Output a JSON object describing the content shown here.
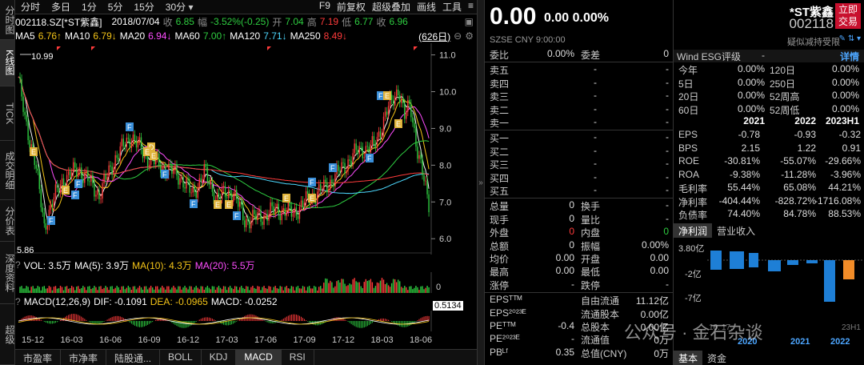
{
  "sidetabs": [
    "分时图",
    "K线图",
    "TICK",
    "成交明细",
    "分价表",
    "深度资料",
    "超级"
  ],
  "toolbar": {
    "periods": [
      "分时",
      "多日",
      "1分",
      "5分",
      "15分",
      "30分"
    ],
    "right": [
      "F9",
      "前复权",
      "超级叠加",
      "画线",
      "工具",
      "≡"
    ]
  },
  "info": {
    "code": "002118.SZ[*ST紫鑫]",
    "date": "2018/07/04",
    "收": "6.85",
    "幅": "-3.52%(-0.25)",
    "开": "7.04",
    "高": "7.19",
    "低": "6.77",
    "收2": "6.96"
  },
  "ma": {
    "MA5": "6.76↑",
    "MA10": "6.79↓",
    "MA20": "6.94↓",
    "MA60": "7.00↑",
    "MA120": "7.71↓",
    "MA250": "8.49↓",
    "count": "(626日)"
  },
  "chart": {
    "ymax": "10.99",
    "ymin": "5.86",
    "ticks": [
      "11.0",
      "10.0",
      "9.0",
      "8.0",
      "7.0",
      "6.0"
    ],
    "xlabels": [
      "15-12",
      "16-03",
      "16-06",
      "16-09",
      "16-12",
      "17-03",
      "17-06",
      "17-09",
      "17-12",
      "18-03",
      "18-06"
    ]
  },
  "vol": {
    "text": "VOL: 3.5万",
    "ma5": "MA(5): 3.9万",
    "ma10": "MA(10): 4.3万",
    "ma20": "MA(20): 5.5万",
    "tick": "0"
  },
  "macd": {
    "params": "MACD(12,26,9)",
    "dif": "DIF: -0.1091",
    "dea": "DEA: -0.0965",
    "macd": "MACD: -0.0252",
    "value": "0.5134"
  },
  "bottomtabs": [
    "市盈率",
    "市净率",
    "陆股通...",
    "BOLL",
    "KDJ",
    "MACD",
    "RSI"
  ],
  "quote": {
    "price": "0.00",
    "chg": "0.00",
    "pct": "0.00%",
    "exchange": "SZSE",
    "cny": "CNY",
    "time": "9:00:00",
    "top": [
      [
        "委比",
        "0.00%",
        "委差",
        "0"
      ]
    ],
    "asks": [
      [
        "卖五",
        "-",
        "-"
      ],
      [
        "卖四",
        "-",
        "-"
      ],
      [
        "卖三",
        "-",
        "-"
      ],
      [
        "卖二",
        "-",
        "-"
      ],
      [
        "卖一",
        "-",
        "-"
      ]
    ],
    "bids": [
      [
        "买一",
        "-",
        "-"
      ],
      [
        "买二",
        "-",
        "-"
      ],
      [
        "买三",
        "-",
        "-"
      ],
      [
        "买四",
        "-",
        "-"
      ],
      [
        "买五",
        "-",
        "-"
      ]
    ],
    "stats": [
      [
        "总量",
        "0",
        "换手",
        "-"
      ],
      [
        "现手",
        "0",
        "量比",
        "-"
      ],
      [
        "外盘",
        "0",
        "内盘",
        "0"
      ],
      [
        "总额",
        "0",
        "振幅",
        "0.00%"
      ],
      [
        "均价",
        "0.00",
        "开盘",
        "0.00"
      ],
      [
        "最高",
        "0.00",
        "最低",
        "0.00"
      ],
      [
        "涨停",
        "-",
        "跌停",
        "-"
      ]
    ],
    "bottom": [
      [
        "EPSᵀᵀᴹ",
        "",
        "自由流通",
        "11.12亿"
      ],
      [
        "EPS²⁰²³ᴱ",
        "",
        "流通股本",
        "0.00亿"
      ],
      [
        "PEᵀᵀᴹ",
        "-0.4",
        "总股本",
        "0.00亿"
      ],
      [
        "PE²⁰²³ᴱ",
        "-",
        "流通值",
        "0万"
      ],
      [
        "PBᴸᶠ",
        "0.35",
        "总值(CNY)",
        "0万"
      ]
    ]
  },
  "fund": {
    "name": "*ST紫鑫",
    "code": "002118",
    "btn1": "立即",
    "btn2": "交易",
    "flag": "疑似减持受限",
    "esg": "Wind ESG评级",
    "esg_val": "-",
    "detail": "详情",
    "perf": [
      [
        "今年",
        "0.00%",
        "120日",
        "0.00%"
      ],
      [
        "5日",
        "0.00%",
        "250日",
        "0.00%"
      ],
      [
        "20日",
        "0.00%",
        "52周高",
        "0.00%"
      ],
      [
        "60日",
        "0.00%",
        "52周低",
        "0.00%"
      ]
    ],
    "years": [
      "2021",
      "2022",
      "2023H1"
    ],
    "fin": [
      [
        "EPS",
        "-0.78",
        "-0.93",
        "-0.32"
      ],
      [
        "BPS",
        "2.15",
        "1.22",
        "0.91"
      ],
      [
        "ROE",
        "-30.81%",
        "-55.07%",
        "-29.66%"
      ],
      [
        "ROA",
        "-9.38%",
        "-11.28%",
        "-3.96%"
      ],
      [
        "毛利率",
        "55.44%",
        "65.08%",
        "44.21%"
      ],
      [
        "净利率",
        "-404.44%",
        "-828.72%",
        "-1716.08%"
      ],
      [
        "负债率",
        "74.40%",
        "84.78%",
        "88.53%"
      ]
    ],
    "tabs": [
      "净利润",
      "营业收入"
    ],
    "bars_axis": [
      "3.80亿",
      "-2亿",
      "-7亿"
    ],
    "bar_years": [
      "2020",
      "2021",
      "2022"
    ],
    "bottomtabs": [
      "基本",
      "资金"
    ]
  },
  "watermark": "公众号 · 金石杂谈",
  "colors": {
    "up": "#ff3b3b",
    "down": "#2ecc40",
    "accent": "#4da6ff",
    "bar": "#1e7fd6",
    "bar_orange": "#f28c28"
  }
}
